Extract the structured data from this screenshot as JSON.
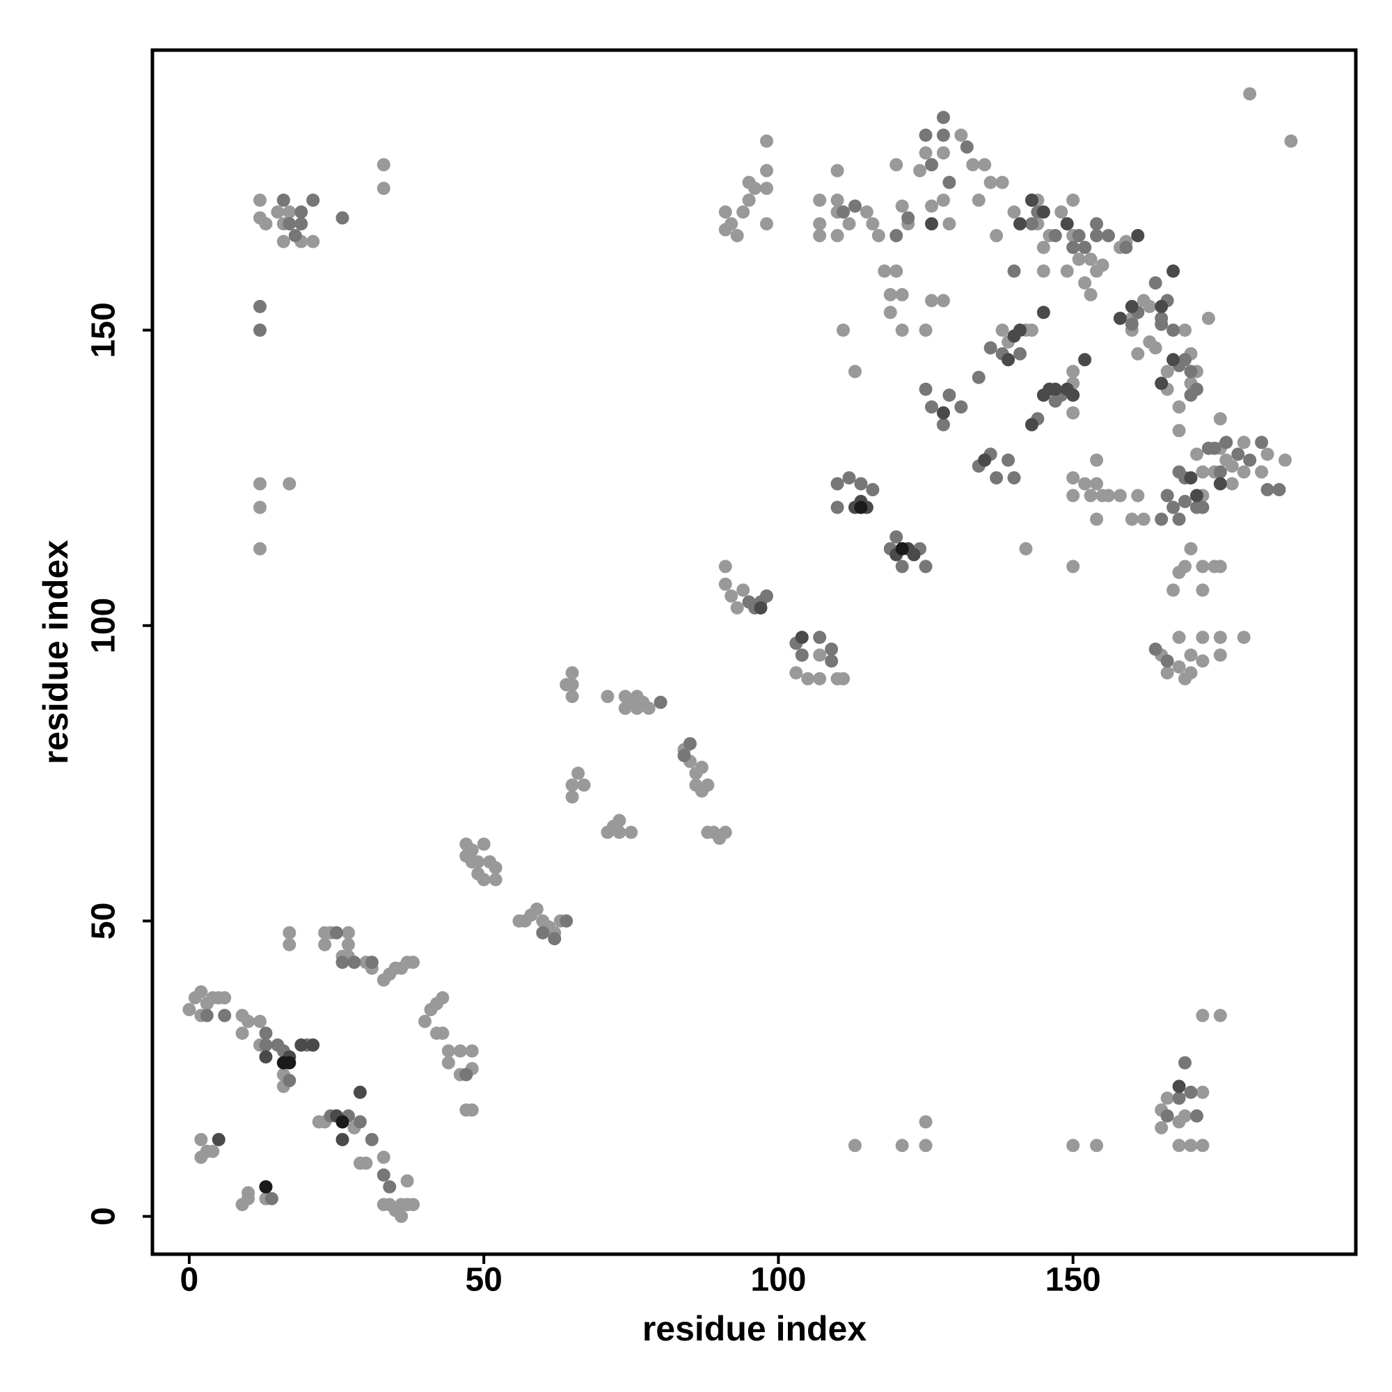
{
  "chart_data": {
    "type": "scatter",
    "x_label": "residue index",
    "y_label": "residue index",
    "xlim": [
      -6.25,
      198
    ],
    "ylim": [
      -6.4,
      197.4
    ],
    "xticks": [
      0,
      50,
      100,
      150
    ],
    "yticks": [
      0,
      50,
      100,
      150
    ],
    "grid": false,
    "series": [
      {
        "color": "#999999",
        "x": [
          0,
          1,
          2,
          2,
          3,
          4,
          5,
          6,
          9,
          9,
          10,
          12,
          12,
          2,
          3,
          4,
          2,
          9,
          10,
          10,
          13,
          16,
          16,
          17,
          17,
          22,
          23,
          23,
          24,
          27,
          27,
          27,
          26,
          28,
          29,
          30,
          30,
          31,
          33,
          33,
          34,
          35,
          36,
          37,
          37,
          38,
          33,
          34,
          35,
          36,
          37,
          38,
          40,
          41,
          42,
          42,
          43,
          43,
          44,
          44,
          46,
          46,
          47,
          48,
          48,
          48,
          47,
          33,
          33,
          47,
          47,
          48,
          48,
          49,
          49,
          50,
          50,
          51,
          52,
          52,
          56,
          57,
          58,
          59,
          60,
          61,
          62,
          63,
          64,
          65,
          65,
          65,
          65,
          65,
          66,
          67,
          71,
          71,
          72,
          73,
          74,
          74,
          75,
          76,
          76,
          77,
          78,
          73,
          75,
          84,
          85,
          86,
          86,
          87,
          87,
          88,
          88,
          89,
          90,
          91,
          91,
          91,
          92,
          93,
          94,
          96,
          91,
          91,
          92,
          93,
          94,
          95,
          95,
          96,
          98,
          98,
          98,
          98,
          103,
          104,
          105,
          107,
          107,
          110,
          111,
          107,
          107,
          107,
          110,
          110,
          110,
          110,
          111,
          113,
          115,
          112,
          116,
          117,
          118,
          119,
          119,
          120,
          121,
          121,
          120,
          121,
          122,
          124,
          125,
          126,
          125,
          126,
          128,
          128,
          128,
          129,
          131,
          133,
          134,
          135,
          136,
          138,
          137,
          138,
          139,
          140,
          142,
          143,
          144,
          144,
          145,
          145,
          146,
          148,
          149,
          150,
          150,
          150,
          150,
          150,
          151,
          152,
          153,
          153,
          154,
          155,
          158,
          159,
          160,
          160,
          161,
          162,
          163,
          164,
          150,
          150,
          150,
          152,
          153,
          154,
          154,
          154,
          155,
          156,
          158,
          160,
          161,
          162,
          142,
          163,
          166,
          166,
          168,
          168,
          169,
          170,
          170,
          171,
          171,
          172,
          172,
          173,
          174,
          175,
          175,
          176,
          177,
          177,
          179,
          179,
          182,
          183,
          186,
          179,
          175,
          175,
          172,
          172,
          168,
          168,
          166,
          165,
          169,
          170,
          170,
          167,
          168,
          170,
          172,
          174,
          175,
          169,
          172,
          180,
          187,
          172,
          175,
          165,
          165,
          166,
          168,
          168,
          169,
          170,
          172,
          172,
          113,
          121,
          125,
          125,
          150,
          154,
          12,
          12,
          12,
          17,
          12,
          12,
          13,
          16,
          16,
          17,
          19,
          21,
          15,
          36,
          28,
          23
        ],
        "y": [
          35,
          37,
          38,
          34,
          36,
          37,
          37,
          37,
          34,
          31,
          33,
          29,
          33,
          10,
          11,
          11,
          13,
          2,
          4,
          3,
          3,
          22,
          24,
          48,
          46,
          16,
          48,
          46,
          48,
          48,
          46,
          44,
          44,
          43,
          9,
          9,
          43,
          42,
          10,
          2,
          2,
          1,
          2,
          6,
          2,
          2,
          40,
          41,
          42,
          42,
          43,
          43,
          33,
          35,
          36,
          31,
          37,
          31,
          28,
          26,
          28,
          24,
          18,
          28,
          25,
          18,
          24,
          178,
          174,
          61,
          63,
          62,
          60,
          60,
          58,
          63,
          57,
          60,
          59,
          57,
          50,
          50,
          51,
          52,
          50,
          49,
          48,
          50,
          90,
          92,
          90,
          88,
          73,
          71,
          75,
          73,
          88,
          65,
          66,
          67,
          88,
          86,
          87,
          88,
          86,
          87,
          86,
          65,
          65,
          79,
          77,
          75,
          73,
          72,
          76,
          73,
          65,
          65,
          64,
          65,
          110,
          107,
          105,
          103,
          106,
          103,
          170,
          167,
          168,
          166,
          170,
          172,
          175,
          174,
          174,
          177,
          168,
          182,
          92,
          95,
          91,
          91,
          95,
          91,
          91,
          172,
          168,
          166,
          177,
          172,
          170,
          166,
          150,
          143,
          170,
          168,
          168,
          166,
          160,
          156,
          153,
          160,
          156,
          150,
          178,
          171,
          168,
          177,
          150,
          155,
          180,
          171,
          155,
          180,
          172,
          168,
          183,
          178,
          172,
          178,
          175,
          175,
          166,
          150,
          148,
          170,
          150,
          150,
          172,
          168,
          164,
          160,
          166,
          170,
          160,
          172,
          166,
          143,
          141,
          136,
          162,
          158,
          156,
          162,
          160,
          161,
          164,
          165,
          152,
          150,
          146,
          155,
          154,
          147,
          125,
          122,
          110,
          124,
          122,
          128,
          124,
          118,
          122,
          122,
          122,
          118,
          122,
          118,
          113,
          148,
          140,
          143,
          133,
          137,
          150,
          146,
          141,
          129,
          143,
          126,
          122,
          152,
          126,
          135,
          130,
          128,
          127,
          124,
          126,
          131,
          126,
          129,
          128,
          98,
          98,
          95,
          94,
          98,
          98,
          93,
          92,
          95,
          91,
          95,
          92,
          106,
          109,
          113,
          110,
          110,
          110,
          110,
          106,
          190,
          182,
          34,
          34,
          15,
          18,
          20,
          16,
          12,
          17,
          12,
          12,
          21,
          12,
          12,
          12,
          16,
          12,
          12,
          124,
          120,
          113,
          124,
          172,
          169,
          168,
          168,
          165,
          170,
          165,
          165,
          170,
          0,
          15,
          16
        ]
      },
      {
        "color": "#777777",
        "x": [
          3,
          6,
          13,
          16,
          17,
          15,
          26,
          31,
          33,
          34,
          25,
          12,
          12,
          16,
          18,
          19,
          21,
          17,
          19,
          26,
          47,
          60,
          62,
          64,
          80,
          84,
          85,
          95,
          96,
          97,
          98,
          103,
          104,
          107,
          109,
          109,
          110,
          110,
          112,
          114,
          116,
          113,
          111,
          120,
          122,
          125,
          126,
          128,
          128,
          129,
          132,
          125,
          126,
          128,
          129,
          131,
          134,
          134,
          136,
          137,
          139,
          140,
          136,
          141,
          140,
          144,
          146,
          147,
          148,
          152,
          154,
          160,
          161,
          164,
          165,
          165,
          166,
          167,
          168,
          169,
          170,
          171,
          170,
          165,
          166,
          168,
          169,
          169,
          171,
          172,
          173,
          174,
          175,
          176,
          178,
          180,
          182,
          185,
          183,
          120,
          119,
          121,
          124,
          125,
          138,
          143,
          144,
          147,
          151,
          150,
          154,
          156,
          159,
          164,
          166,
          167,
          168,
          170,
          168,
          169,
          166,
          171,
          13,
          20,
          24,
          27,
          29,
          31,
          14,
          28
        ],
        "y": [
          34,
          34,
          31,
          28,
          23,
          29,
          43,
          43,
          7,
          5,
          48,
          154,
          150,
          172,
          166,
          170,
          172,
          168,
          168,
          169,
          24,
          48,
          47,
          50,
          87,
          78,
          80,
          104,
          103,
          104,
          105,
          97,
          95,
          98,
          96,
          94,
          124,
          120,
          125,
          124,
          123,
          171,
          170,
          166,
          169,
          183,
          178,
          183,
          186,
          175,
          181,
          140,
          137,
          134,
          139,
          137,
          142,
          127,
          129,
          125,
          128,
          125,
          147,
          146,
          160,
          135,
          140,
          138,
          139,
          164,
          166,
          151,
          153,
          158,
          151,
          152,
          155,
          150,
          144,
          145,
          143,
          140,
          139,
          118,
          122,
          118,
          121,
          125,
          120,
          120,
          130,
          130,
          126,
          131,
          129,
          128,
          131,
          123,
          123,
          115,
          113,
          110,
          113,
          110,
          146,
          168,
          170,
          166,
          166,
          164,
          168,
          166,
          164,
          96,
          94,
          120,
          126,
          21,
          20,
          26,
          17,
          17,
          29,
          29,
          17,
          17,
          16,
          13,
          3,
          43
        ]
      },
      {
        "color": "#4a4a4a",
        "x": [
          5,
          13,
          13,
          16,
          17,
          25,
          26,
          26,
          29,
          19,
          21,
          97,
          104,
          113,
          114,
          115,
          120,
          122,
          123,
          128,
          135,
          139,
          140,
          141,
          143,
          145,
          146,
          147,
          149,
          150,
          152,
          158,
          160,
          165,
          167,
          170,
          171,
          175,
          161,
          167,
          165,
          168,
          145,
          145,
          149,
          143,
          141,
          126
        ],
        "y": [
          13,
          5,
          27,
          26,
          27,
          17,
          16,
          13,
          21,
          29,
          29,
          103,
          98,
          120,
          121,
          120,
          112,
          113,
          112,
          136,
          128,
          145,
          149,
          150,
          134,
          139,
          140,
          140,
          140,
          139,
          145,
          152,
          154,
          154,
          160,
          125,
          122,
          124,
          166,
          145,
          141,
          22,
          153,
          170,
          168,
          172,
          168,
          168
        ]
      },
      {
        "color": "#1a1a1a",
        "x": [
          16,
          26,
          114,
          121,
          13,
          17
        ],
        "y": [
          26,
          16,
          120,
          113,
          5,
          26
        ]
      }
    ]
  }
}
